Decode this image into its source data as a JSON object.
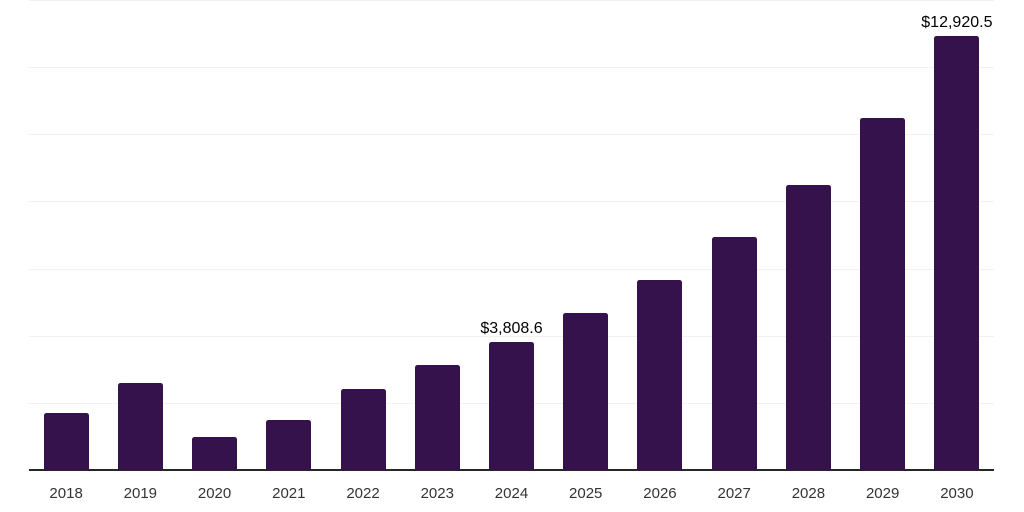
{
  "chart_data": {
    "type": "bar",
    "title": "",
    "xlabel": "",
    "ylabel": "",
    "categories": [
      "2018",
      "2019",
      "2020",
      "2021",
      "2022",
      "2023",
      "2024",
      "2025",
      "2026",
      "2027",
      "2028",
      "2029",
      "2030"
    ],
    "values": [
      1700,
      2590,
      985,
      1490,
      2415,
      3130,
      3808.6,
      4680,
      5665,
      6945,
      8495,
      10495,
      12920.5
    ],
    "data_labels": {
      "2024": "$3,808.6",
      "2030": "$12,920.5"
    },
    "ylim": [
      0,
      14000
    ],
    "grid_interval": 2000,
    "grid": "horizontal",
    "legend": "none",
    "colors": {
      "bar_fill": "#36124D",
      "axis_line": "#262626",
      "gridline": "#F2F2F2",
      "data_label_text": "#000000",
      "tick_label_text": "#333333",
      "background": "#FFFFFF"
    }
  }
}
